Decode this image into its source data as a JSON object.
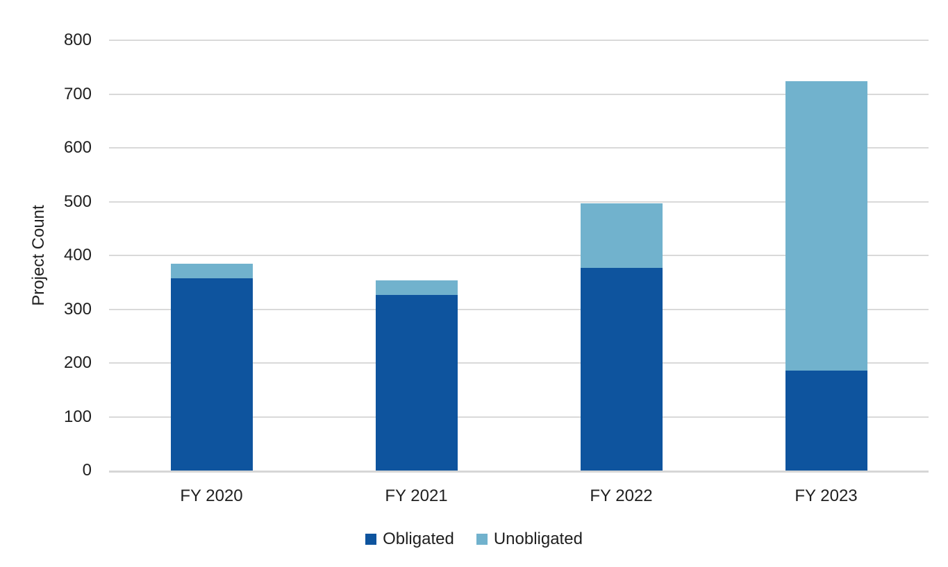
{
  "colors": {
    "obligated": "#0E549E",
    "unobligated": "#71B2CD",
    "gridline": "#D9D9D9",
    "axis_line": "#D6D6D6",
    "text": "#1F1F1F",
    "background": "#FFFFFF"
  },
  "chart_data": {
    "type": "bar",
    "stacked": true,
    "title": "",
    "xlabel": "",
    "ylabel": "Project Count",
    "categories": [
      "FY 2020",
      "FY 2021",
      "FY 2022",
      "FY 2023"
    ],
    "series": [
      {
        "name": "Obligated",
        "color": "#0E549E",
        "values": [
          357,
          327,
          377,
          186
        ]
      },
      {
        "name": "Unobligated",
        "color": "#71B2CD",
        "values": [
          28,
          26,
          120,
          538
        ]
      }
    ],
    "stack_totals": [
      385,
      353,
      497,
      724
    ],
    "ylim": [
      0,
      800
    ],
    "yticks": [
      0,
      100,
      200,
      300,
      400,
      500,
      600,
      700,
      800
    ],
    "grid": true,
    "legend_position": "bottom"
  }
}
